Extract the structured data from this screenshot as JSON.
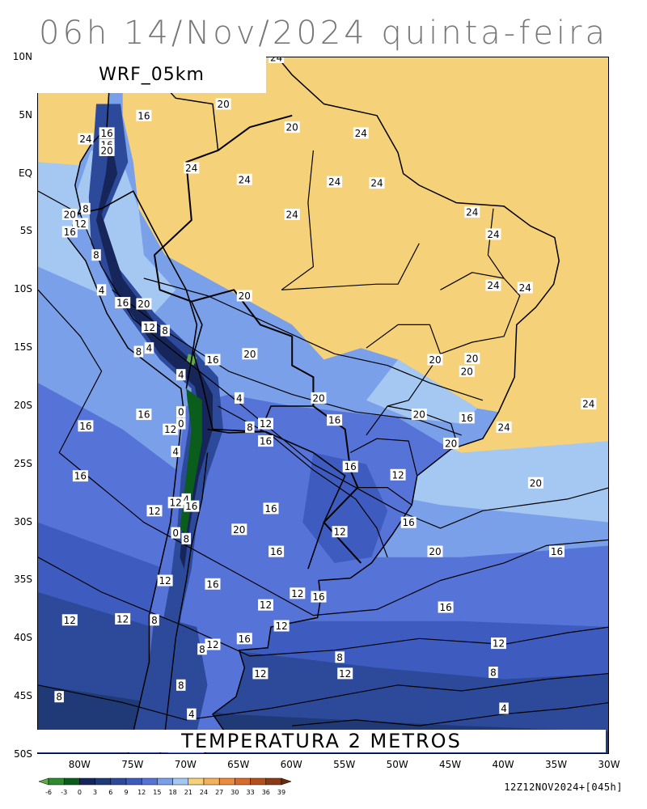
{
  "title": "06h 14/Nov/2024 quinta-feira",
  "model_label": "WRF_05km",
  "field_label": "TEMPERATURA 2 METROS",
  "run_info": "12Z12NOV2024+[045h]",
  "lat_labels": [
    "10N",
    "5N",
    "EQ",
    "5S",
    "10S",
    "15S",
    "20S",
    "25S",
    "30S",
    "35S",
    "40S",
    "45S",
    "50S"
  ],
  "lon_labels": [
    "80W",
    "75W",
    "70W",
    "65W",
    "60W",
    "55W",
    "50W",
    "45W",
    "40W",
    "35W",
    "30W"
  ],
  "colorbar": {
    "ticks": [
      "-6",
      "-3",
      "0",
      "3",
      "6",
      "9",
      "12",
      "15",
      "18",
      "21",
      "24",
      "27",
      "30",
      "33",
      "36",
      "39"
    ],
    "colors": [
      "#5faa4a",
      "#2e8b2e",
      "#0a5d1a",
      "#16265a",
      "#203a78",
      "#2d4a9a",
      "#3e5cc0",
      "#5673d8",
      "#7aa0ea",
      "#a4c8f2",
      "#f5d27a",
      "#f5b05a",
      "#ee8a3c",
      "#d86a2a",
      "#b4501e",
      "#8a3a14",
      "#6a2a0c"
    ]
  },
  "contour_labels": [
    {
      "t": "24",
      "lon": -61.5,
      "lat": 10.0
    },
    {
      "t": "16",
      "lon": -74.0,
      "lat": 5.0
    },
    {
      "t": "20",
      "lon": -66.5,
      "lat": 6.0
    },
    {
      "t": "20",
      "lon": -60.0,
      "lat": 4.0
    },
    {
      "t": "24",
      "lon": -53.5,
      "lat": 3.5
    },
    {
      "t": "16",
      "lon": -77.5,
      "lat": 3.5
    },
    {
      "t": "24",
      "lon": -79.5,
      "lat": 3.0
    },
    {
      "t": "16",
      "lon": -77.5,
      "lat": 2.5
    },
    {
      "t": "20",
      "lon": -77.5,
      "lat": 2.0
    },
    {
      "t": "24",
      "lon": -69.5,
      "lat": 0.5
    },
    {
      "t": "24",
      "lon": -64.5,
      "lat": -0.5
    },
    {
      "t": "24",
      "lon": -56.0,
      "lat": -0.7
    },
    {
      "t": "24",
      "lon": -52.0,
      "lat": -0.8
    },
    {
      "t": "8",
      "lon": -79.5,
      "lat": -3.0
    },
    {
      "t": "20",
      "lon": -81.0,
      "lat": -3.5
    },
    {
      "t": "24",
      "lon": -60.0,
      "lat": -3.5
    },
    {
      "t": "12",
      "lon": -80.0,
      "lat": -4.3
    },
    {
      "t": "24",
      "lon": -43.0,
      "lat": -3.3
    },
    {
      "t": "16",
      "lon": -81.0,
      "lat": -5.0
    },
    {
      "t": "24",
      "lon": -41.0,
      "lat": -5.2
    },
    {
      "t": "8",
      "lon": -78.5,
      "lat": -7.0
    },
    {
      "t": "24",
      "lon": -41.0,
      "lat": -9.6
    },
    {
      "t": "24",
      "lon": -38.0,
      "lat": -9.8
    },
    {
      "t": "4",
      "lon": -78.0,
      "lat": -10.0
    },
    {
      "t": "20",
      "lon": -64.5,
      "lat": -10.5
    },
    {
      "t": "16",
      "lon": -76.0,
      "lat": -11.1
    },
    {
      "t": "20",
      "lon": -74.0,
      "lat": -11.2
    },
    {
      "t": "12",
      "lon": -73.5,
      "lat": -13.2
    },
    {
      "t": "8",
      "lon": -72.0,
      "lat": -13.5
    },
    {
      "t": "4",
      "lon": -73.5,
      "lat": -15.0
    },
    {
      "t": "8",
      "lon": -74.5,
      "lat": -15.3
    },
    {
      "t": "16",
      "lon": -67.5,
      "lat": -16.0
    },
    {
      "t": "20",
      "lon": -64.0,
      "lat": -15.5
    },
    {
      "t": "20",
      "lon": -46.5,
      "lat": -16.0
    },
    {
      "t": "20",
      "lon": -43.0,
      "lat": -15.9
    },
    {
      "t": "20",
      "lon": -43.5,
      "lat": -17.0
    },
    {
      "t": "4",
      "lon": -70.5,
      "lat": -17.3
    },
    {
      "t": "4",
      "lon": -65.0,
      "lat": -19.3
    },
    {
      "t": "20",
      "lon": -57.5,
      "lat": -19.3
    },
    {
      "t": "24",
      "lon": -32.0,
      "lat": -19.8
    },
    {
      "t": "0",
      "lon": -70.5,
      "lat": -20.5
    },
    {
      "t": "16",
      "lon": -74.0,
      "lat": -20.7
    },
    {
      "t": "20",
      "lon": -48.0,
      "lat": -20.7
    },
    {
      "t": "0",
      "lon": -70.5,
      "lat": -21.5
    },
    {
      "t": "16",
      "lon": -56.0,
      "lat": -21.2
    },
    {
      "t": "16",
      "lon": -43.5,
      "lat": -21.0
    },
    {
      "t": "12",
      "lon": -62.5,
      "lat": -21.5
    },
    {
      "t": "16",
      "lon": -79.5,
      "lat": -21.7
    },
    {
      "t": "8",
      "lon": -64.0,
      "lat": -21.8
    },
    {
      "t": "12",
      "lon": -71.5,
      "lat": -22.0
    },
    {
      "t": "24",
      "lon": -40.0,
      "lat": -21.8
    },
    {
      "t": "16",
      "lon": -62.5,
      "lat": -23.0
    },
    {
      "t": "20",
      "lon": -45.0,
      "lat": -23.2
    },
    {
      "t": "4",
      "lon": -71.0,
      "lat": -23.9
    },
    {
      "t": "16",
      "lon": -54.5,
      "lat": -25.2
    },
    {
      "t": "12",
      "lon": -50.0,
      "lat": -25.9
    },
    {
      "t": "16",
      "lon": -80.0,
      "lat": -26.0
    },
    {
      "t": "20",
      "lon": -37.0,
      "lat": -26.6
    },
    {
      "t": "4",
      "lon": -70.0,
      "lat": -28.0
    },
    {
      "t": "12",
      "lon": -71.0,
      "lat": -28.3
    },
    {
      "t": "16",
      "lon": -69.5,
      "lat": -28.6
    },
    {
      "t": "12",
      "lon": -73.0,
      "lat": -29.0
    },
    {
      "t": "16",
      "lon": -62.0,
      "lat": -28.8
    },
    {
      "t": "16",
      "lon": -49.0,
      "lat": -30.0
    },
    {
      "t": "20",
      "lon": -65.0,
      "lat": -30.6
    },
    {
      "t": "12",
      "lon": -55.5,
      "lat": -30.8
    },
    {
      "t": "0",
      "lon": -71.0,
      "lat": -30.9
    },
    {
      "t": "8",
      "lon": -70.0,
      "lat": -31.4
    },
    {
      "t": "16",
      "lon": -61.5,
      "lat": -32.5
    },
    {
      "t": "20",
      "lon": -46.5,
      "lat": -32.5
    },
    {
      "t": "16",
      "lon": -35.0,
      "lat": -32.5
    },
    {
      "t": "12",
      "lon": -72.0,
      "lat": -35.0
    },
    {
      "t": "16",
      "lon": -67.5,
      "lat": -35.3
    },
    {
      "t": "12",
      "lon": -59.5,
      "lat": -36.1
    },
    {
      "t": "16",
      "lon": -57.5,
      "lat": -36.4
    },
    {
      "t": "12",
      "lon": -62.5,
      "lat": -37.1
    },
    {
      "t": "16",
      "lon": -45.5,
      "lat": -37.3
    },
    {
      "t": "12",
      "lon": -81.0,
      "lat": -38.4
    },
    {
      "t": "12",
      "lon": -76.0,
      "lat": -38.3
    },
    {
      "t": "8",
      "lon": -73.0,
      "lat": -38.4
    },
    {
      "t": "12",
      "lon": -61.0,
      "lat": -38.9
    },
    {
      "t": "16",
      "lon": -64.5,
      "lat": -40.0
    },
    {
      "t": "12",
      "lon": -67.5,
      "lat": -40.5
    },
    {
      "t": "8",
      "lon": -68.5,
      "lat": -40.9
    },
    {
      "t": "12",
      "lon": -40.5,
      "lat": -40.4
    },
    {
      "t": "8",
      "lon": -55.5,
      "lat": -41.6
    },
    {
      "t": "12",
      "lon": -55.0,
      "lat": -43.0
    },
    {
      "t": "12",
      "lon": -63.0,
      "lat": -43.0
    },
    {
      "t": "8",
      "lon": -41.0,
      "lat": -42.9
    },
    {
      "t": "8",
      "lon": -70.5,
      "lat": -44.0
    },
    {
      "t": "8",
      "lon": -82.0,
      "lat": -45.0
    },
    {
      "t": "4",
      "lon": -40.0,
      "lat": -46.0
    },
    {
      "t": "4",
      "lon": -69.5,
      "lat": -46.5
    }
  ]
}
